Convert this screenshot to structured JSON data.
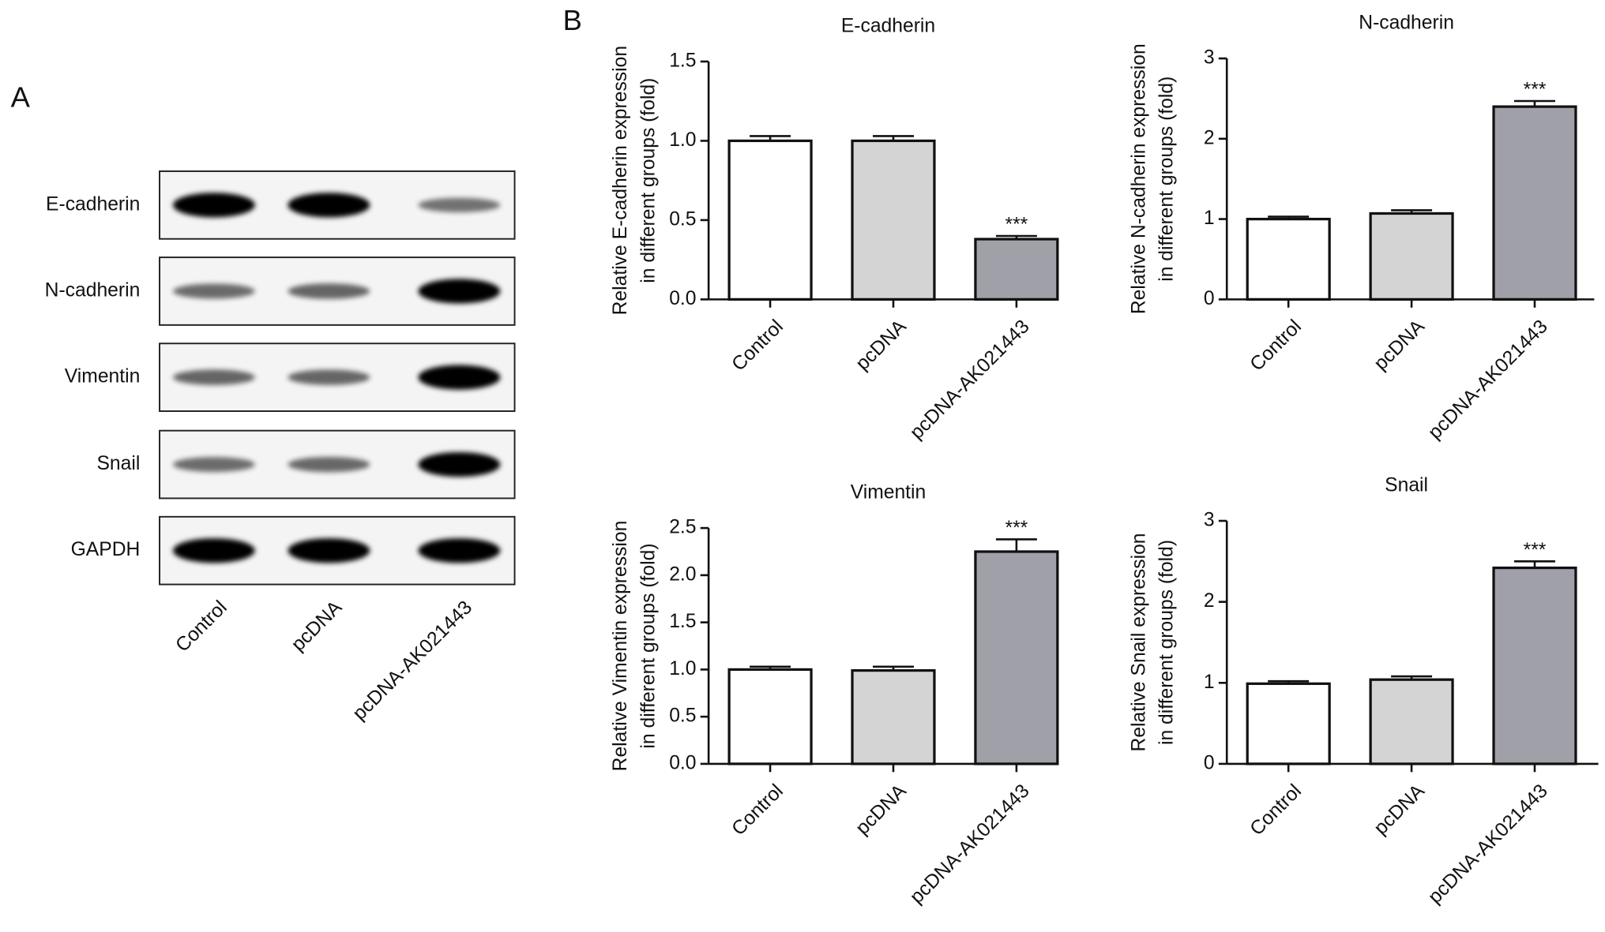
{
  "panel_labels": [
    "A",
    "B"
  ],
  "blot": {
    "rows": [
      "E-cadherin",
      "N-cadherin",
      "Vimentin",
      "Snail",
      "GAPDH"
    ],
    "lanes": [
      "Control",
      "pcDNA",
      "pcDNA-AK021443"
    ]
  },
  "chart_data": [
    {
      "type": "bar",
      "title": "E-cadherin",
      "ylabel": [
        "Relative E-cadherin expression",
        "in different groups (fold)"
      ],
      "categories": [
        "Control",
        "pcDNA",
        "pcDNA-AK021443"
      ],
      "values": [
        1.0,
        1.0,
        0.38
      ],
      "errors": [
        0.03,
        0.03,
        0.02
      ],
      "colors": [
        "#ffffff",
        "#d4d4d4",
        "#a0a0a8"
      ],
      "ylim": [
        0,
        1.5
      ],
      "yticks": [
        {
          "value": 0,
          "label": "0.0"
        },
        0.5,
        {
          "value": 1,
          "label": "1.0"
        },
        1.5
      ],
      "annotations": [
        {
          "category": "pcDNA-AK021443",
          "text": "***"
        }
      ]
    },
    {
      "type": "bar",
      "title": "N-cadherin",
      "ylabel": [
        "Relative N-cadherin expression",
        "in different groups (fold)"
      ],
      "categories": [
        "Control",
        "pcDNA",
        "pcDNA-AK021443"
      ],
      "values": [
        1.0,
        1.07,
        2.4
      ],
      "errors": [
        0.03,
        0.04,
        0.07
      ],
      "colors": [
        "#ffffff",
        "#d4d4d4",
        "#a0a0a8"
      ],
      "ylim": [
        0,
        3
      ],
      "yticks": [
        0,
        1,
        2,
        3
      ],
      "annotations": [
        {
          "category": "pcDNA-AK021443",
          "text": "***"
        }
      ]
    },
    {
      "type": "bar",
      "title": "Vimentin",
      "ylabel": [
        "Relative Vimentin expression",
        "in different groups (fold)"
      ],
      "categories": [
        "Control",
        "pcDNA",
        "pcDNA-AK021443"
      ],
      "values": [
        1.0,
        0.99,
        2.25
      ],
      "errors": [
        0.03,
        0.04,
        0.13
      ],
      "colors": [
        "#ffffff",
        "#d4d4d4",
        "#a0a0a8"
      ],
      "ylim": [
        0,
        2.5
      ],
      "yticks": [
        {
          "value": 0,
          "label": "0.0"
        },
        0.5,
        {
          "value": 1,
          "label": "1.0"
        },
        1.5,
        {
          "value": 2,
          "label": "2.0"
        },
        2.5
      ],
      "annotations": [
        {
          "category": "pcDNA-AK021443",
          "text": "***"
        }
      ]
    },
    {
      "type": "bar",
      "title": "Snail",
      "ylabel": [
        "Relative Snail expression",
        "in different groups (fold)"
      ],
      "categories": [
        "Control",
        "pcDNA",
        "pcDNA-AK021443"
      ],
      "values": [
        0.99,
        1.04,
        2.42
      ],
      "errors": [
        0.03,
        0.04,
        0.08
      ],
      "colors": [
        "#ffffff",
        "#d4d4d4",
        "#a0a0a8"
      ],
      "ylim": [
        0,
        3
      ],
      "yticks": [
        0,
        1,
        2,
        3
      ],
      "annotations": [
        {
          "category": "pcDNA-AK021443",
          "text": "***"
        }
      ]
    }
  ]
}
